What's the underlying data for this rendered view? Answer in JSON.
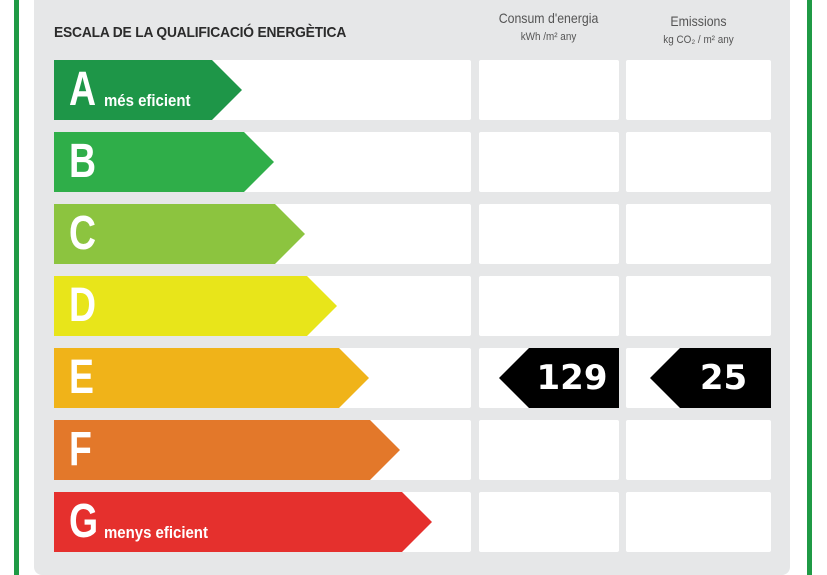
{
  "title": "ESCALA DE LA QUALIFICACIÓ ENERGÈTICA",
  "columns": {
    "consum": {
      "label": "Consum d'energia",
      "unit": "kWh /m² any"
    },
    "emissions": {
      "label": "Emissions",
      "unit": "kg CO₂ / m² any"
    }
  },
  "classes": [
    {
      "letter": "A",
      "sub": "més eficient",
      "color": "#1e9648"
    },
    {
      "letter": "B",
      "sub": "",
      "color": "#2fae49"
    },
    {
      "letter": "C",
      "sub": "",
      "color": "#8cc43f"
    },
    {
      "letter": "D",
      "sub": "",
      "color": "#e8e51a"
    },
    {
      "letter": "E",
      "sub": "",
      "color": "#f0b319"
    },
    {
      "letter": "F",
      "sub": "",
      "color": "#e3782a"
    },
    {
      "letter": "G",
      "sub": "menys eficient",
      "color": "#e5302d"
    }
  ],
  "rating": {
    "class": "E",
    "consum_value": "129",
    "emissions_value": "25",
    "indicator_color": "#000000"
  },
  "frame_color": "#1f9a45"
}
